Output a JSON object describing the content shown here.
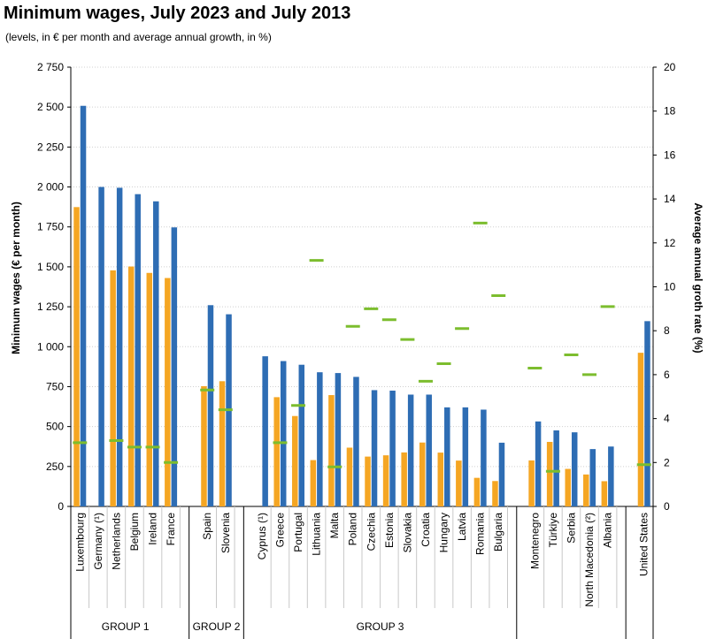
{
  "header": {
    "title": "Minimum wages, July 2023 and July 2013",
    "subtitle": "(levels, in € per month and average annual growth, in %)"
  },
  "chart_data": {
    "type": "bar",
    "title": "Minimum wages, July 2023 and July 2013",
    "subtitle": "(levels, in € per month and average annual growth, in %)",
    "ylabel": "Minimum wages (€ per month)",
    "y2label": "Average annual groth rate (%)",
    "ylim": [
      0,
      2750
    ],
    "y2lim": [
      0,
      20
    ],
    "yticks": [
      "0",
      "250",
      "500",
      "750",
      "1 000",
      "1 250",
      "1 500",
      "1 750",
      "2 000",
      "2 250",
      "2 500",
      "2 750"
    ],
    "y2ticks": [
      "0",
      "2",
      "4",
      "6",
      "8",
      "10",
      "12",
      "14",
      "16",
      "18",
      "20"
    ],
    "grid": true,
    "colors": {
      "july_2013": "#f5a623",
      "july_2023": "#2e6db4",
      "growth": "#7cbd2e"
    },
    "groups": [
      {
        "label": "GROUP 1",
        "countries": [
          {
            "name": "Luxembourg",
            "july_2013": 1874,
            "july_2023": 2508,
            "growth": 2.9
          },
          {
            "name": "Germany (¹)",
            "july_2013": null,
            "july_2023": 2000,
            "growth": null
          },
          {
            "name": "Netherlands",
            "july_2013": 1478,
            "july_2023": 1995,
            "growth": 3.0
          },
          {
            "name": "Belgium",
            "july_2013": 1502,
            "july_2023": 1955,
            "growth": 2.7
          },
          {
            "name": "Ireland",
            "july_2013": 1462,
            "july_2023": 1910,
            "growth": 2.7
          },
          {
            "name": "France",
            "july_2013": 1430,
            "july_2023": 1747,
            "growth": 2.0
          }
        ]
      },
      {
        "label": "GROUP 2",
        "countries": [
          {
            "name": "Spain",
            "july_2013": 753,
            "july_2023": 1260,
            "growth": 5.3
          },
          {
            "name": "Slovenia",
            "july_2013": 784,
            "july_2023": 1203,
            "growth": 4.4
          }
        ]
      },
      {
        "label": "GROUP 3",
        "countries": [
          {
            "name": "Cyprus (¹)",
            "july_2013": null,
            "july_2023": 940,
            "growth": null
          },
          {
            "name": "Greece",
            "july_2013": 684,
            "july_2023": 910,
            "growth": 2.9
          },
          {
            "name": "Portugal",
            "july_2013": 566,
            "july_2023": 887,
            "growth": 4.6
          },
          {
            "name": "Lithuania",
            "july_2013": 290,
            "july_2023": 840,
            "growth": 11.2
          },
          {
            "name": "Malta",
            "july_2013": 697,
            "july_2023": 835,
            "growth": 1.8
          },
          {
            "name": "Poland",
            "july_2013": 368,
            "july_2023": 811,
            "growth": 8.2
          },
          {
            "name": "Czechia",
            "july_2013": 312,
            "july_2023": 728,
            "growth": 9.0
          },
          {
            "name": "Estonia",
            "july_2013": 320,
            "july_2023": 725,
            "growth": 8.5
          },
          {
            "name": "Slovakia",
            "july_2013": 338,
            "july_2023": 700,
            "growth": 7.6
          },
          {
            "name": "Croatia",
            "july_2013": 400,
            "july_2023": 700,
            "growth": 5.7
          },
          {
            "name": "Hungary",
            "july_2013": 337,
            "july_2023": 620,
            "growth": 6.5
          },
          {
            "name": "Latvia",
            "july_2013": 287,
            "july_2023": 620,
            "growth": 8.1
          },
          {
            "name": "Romania",
            "july_2013": 179,
            "july_2023": 606,
            "growth": 12.9
          },
          {
            "name": "Bulgaria",
            "july_2013": 159,
            "july_2023": 399,
            "growth": 9.6
          }
        ]
      },
      {
        "label": "",
        "countries": [
          {
            "name": "Montenegro",
            "july_2013": 288,
            "july_2023": 532,
            "growth": 6.3
          },
          {
            "name": "Türkiye",
            "july_2013": 404,
            "july_2023": 476,
            "growth": 1.6
          },
          {
            "name": "Serbia",
            "july_2013": 235,
            "july_2023": 464,
            "growth": 6.9
          },
          {
            "name": "North Macedonia (²)",
            "july_2013": 200,
            "july_2023": 359,
            "growth": 6.0
          },
          {
            "name": "Albania",
            "july_2013": 158,
            "july_2023": 375,
            "growth": 9.1
          }
        ]
      },
      {
        "label": "",
        "countries": [
          {
            "name": "United States",
            "july_2013": 962,
            "july_2023": 1160,
            "growth": 1.9
          }
        ]
      }
    ]
  }
}
